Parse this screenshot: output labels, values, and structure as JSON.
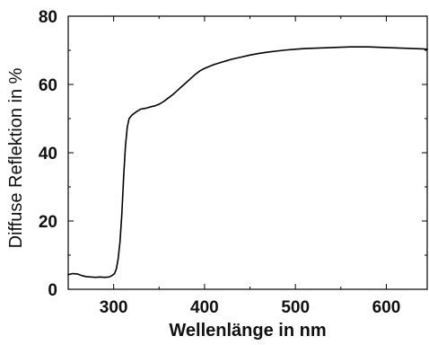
{
  "chart_data": {
    "type": "line",
    "title": "",
    "xlabel": "Wellenlänge in nm",
    "ylabel": "Diffuse Reflektion in %",
    "xlim": [
      250,
      645
    ],
    "ylim": [
      0,
      80
    ],
    "x_ticks": [
      300,
      400,
      500,
      600
    ],
    "y_ticks": [
      0,
      20,
      40,
      60,
      80
    ],
    "x_tick_labels": [
      "300",
      "400",
      "500",
      "600"
    ],
    "y_tick_labels": [
      "0",
      "20",
      "40",
      "60",
      "80"
    ],
    "grid": false,
    "legend": "none",
    "line_color": "#000000",
    "series": [
      {
        "points": [
          [
            250,
            4.3
          ],
          [
            255,
            4.6
          ],
          [
            260,
            4.5
          ],
          [
            265,
            4.0
          ],
          [
            270,
            3.7
          ],
          [
            275,
            3.6
          ],
          [
            280,
            3.5
          ],
          [
            285,
            3.6
          ],
          [
            290,
            3.5
          ],
          [
            295,
            3.6
          ],
          [
            298,
            4.0
          ],
          [
            301,
            4.6
          ],
          [
            303,
            6.0
          ],
          [
            305,
            9.0
          ],
          [
            307,
            14.0
          ],
          [
            309,
            22.0
          ],
          [
            311,
            33.0
          ],
          [
            313,
            42.0
          ],
          [
            315,
            47.5
          ],
          [
            317,
            50.0
          ],
          [
            320,
            51.0
          ],
          [
            325,
            52.0
          ],
          [
            330,
            52.8
          ],
          [
            335,
            53.0
          ],
          [
            340,
            53.4
          ],
          [
            345,
            53.7
          ],
          [
            350,
            54.2
          ],
          [
            355,
            55.0
          ],
          [
            360,
            56.0
          ],
          [
            365,
            57.0
          ],
          [
            370,
            58.2
          ],
          [
            375,
            59.4
          ],
          [
            380,
            60.6
          ],
          [
            385,
            61.8
          ],
          [
            390,
            63.0
          ],
          [
            395,
            64.0
          ],
          [
            400,
            64.7
          ],
          [
            410,
            65.8
          ],
          [
            420,
            66.6
          ],
          [
            430,
            67.4
          ],
          [
            440,
            68.0
          ],
          [
            450,
            68.6
          ],
          [
            460,
            69.1
          ],
          [
            470,
            69.5
          ],
          [
            480,
            69.8
          ],
          [
            490,
            70.1
          ],
          [
            500,
            70.3
          ],
          [
            510,
            70.5
          ],
          [
            520,
            70.6
          ],
          [
            530,
            70.7
          ],
          [
            540,
            70.8
          ],
          [
            550,
            70.9
          ],
          [
            560,
            71.0
          ],
          [
            570,
            71.0
          ],
          [
            580,
            71.0
          ],
          [
            590,
            70.9
          ],
          [
            600,
            70.8
          ],
          [
            610,
            70.7
          ],
          [
            620,
            70.6
          ],
          [
            630,
            70.5
          ],
          [
            640,
            70.4
          ],
          [
            645,
            70.3
          ]
        ]
      }
    ]
  }
}
